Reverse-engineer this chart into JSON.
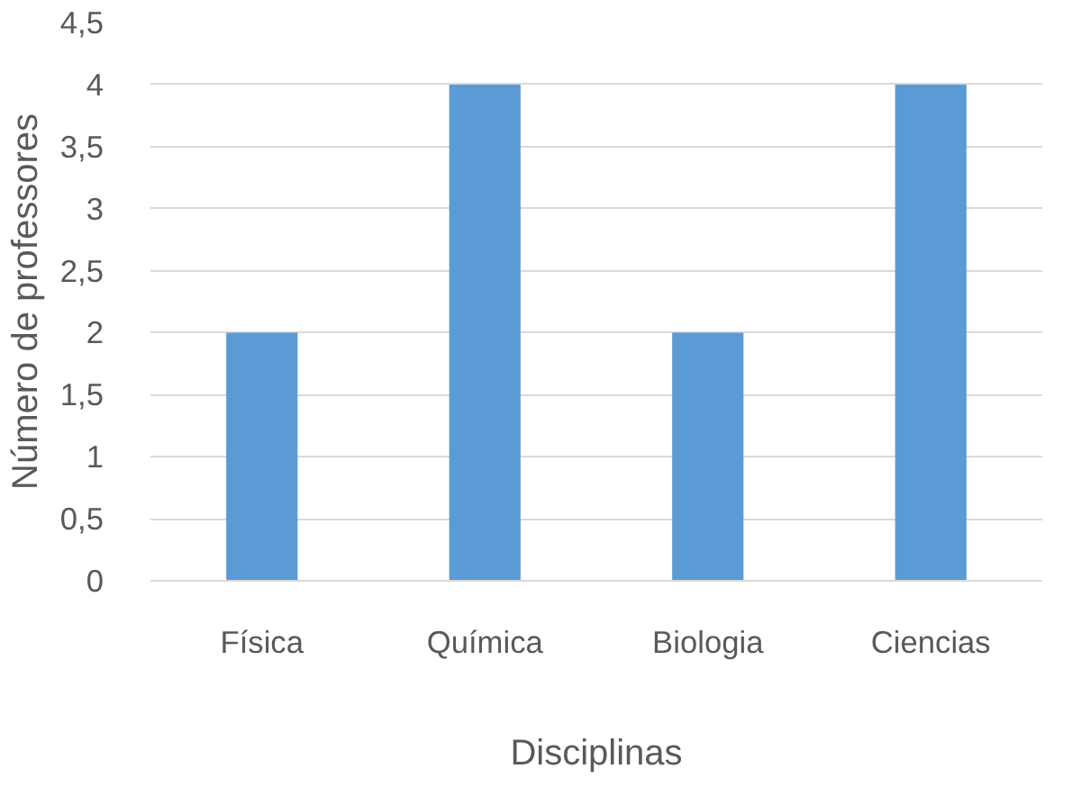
{
  "chart_data": {
    "type": "bar",
    "xlabel": "Disciplinas",
    "ylabel": "Número de professores",
    "categories": [
      "Física",
      "Química",
      "Biologia",
      "Ciencias"
    ],
    "values": [
      2,
      4,
      2,
      4
    ],
    "color": "#5b9bd5",
    "ylim": [
      0,
      4.5
    ],
    "yticks": [
      0,
      {
        "value": 0.5,
        "label": "0,5"
      },
      1,
      {
        "value": 1.5,
        "label": "1,5"
      },
      2,
      {
        "value": 2.5,
        "label": "2,5"
      },
      3,
      {
        "value": 3.5,
        "label": "3,5"
      },
      4,
      {
        "value": 4.5,
        "label": "4,5"
      }
    ],
    "grid": "y"
  }
}
